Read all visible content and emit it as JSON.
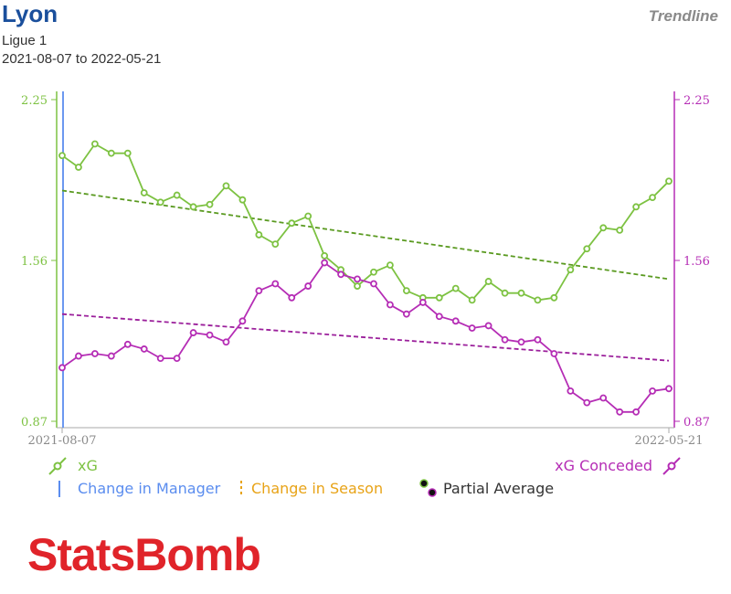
{
  "header": {
    "title": "Lyon",
    "subtitle": "Ligue 1",
    "date_range": "2021-08-07 to 2022-05-21",
    "trendline_label": "Trendline"
  },
  "legend": {
    "xg": "xG",
    "xg_conceded": "xG Conceded",
    "change_manager": "Change in Manager",
    "change_season": "Change in Season",
    "partial_average": "Partial Average"
  },
  "logo": {
    "text": "StatsBomb"
  },
  "colors": {
    "xg": "#7dc242",
    "xg_trend": "#5a9a20",
    "xg_conceded": "#b52db5",
    "xg_conceded_trend": "#9b1f9b",
    "manager": "#5b8def",
    "season": "#e8a317",
    "title": "#1a4f9c",
    "logo": "#e0242a"
  },
  "chart_data": {
    "type": "line",
    "x_start_label": "2021-08-07",
    "x_end_label": "2022-05-21",
    "ylim": [
      0.87,
      2.25
    ],
    "y_ticks": [
      "2.25",
      "1.56",
      "0.87"
    ],
    "y_tick_values": [
      2.25,
      1.56,
      0.87
    ],
    "manager_change_index": 0,
    "series": [
      {
        "name": "xG",
        "values": [
          2.01,
          1.96,
          2.06,
          2.02,
          2.02,
          1.85,
          1.81,
          1.84,
          1.79,
          1.8,
          1.88,
          1.82,
          1.67,
          1.63,
          1.72,
          1.75,
          1.58,
          1.52,
          1.45,
          1.51,
          1.54,
          1.43,
          1.4,
          1.4,
          1.44,
          1.39,
          1.47,
          1.42,
          1.42,
          1.39,
          1.4,
          1.52,
          1.61,
          1.7,
          1.69,
          1.79,
          1.83,
          1.9
        ],
        "trend": [
          1.86,
          1.48
        ]
      },
      {
        "name": "xG Conceded",
        "values": [
          1.1,
          1.15,
          1.16,
          1.15,
          1.2,
          1.18,
          1.14,
          1.14,
          1.25,
          1.24,
          1.21,
          1.3,
          1.43,
          1.46,
          1.4,
          1.45,
          1.55,
          1.5,
          1.48,
          1.46,
          1.37,
          1.33,
          1.38,
          1.32,
          1.3,
          1.27,
          1.28,
          1.22,
          1.21,
          1.22,
          1.16,
          1.0,
          0.95,
          0.97,
          0.91,
          0.91,
          1.0,
          1.01
        ],
        "trend": [
          1.33,
          1.13
        ]
      }
    ],
    "grid": false,
    "legend_position": "bottom"
  }
}
